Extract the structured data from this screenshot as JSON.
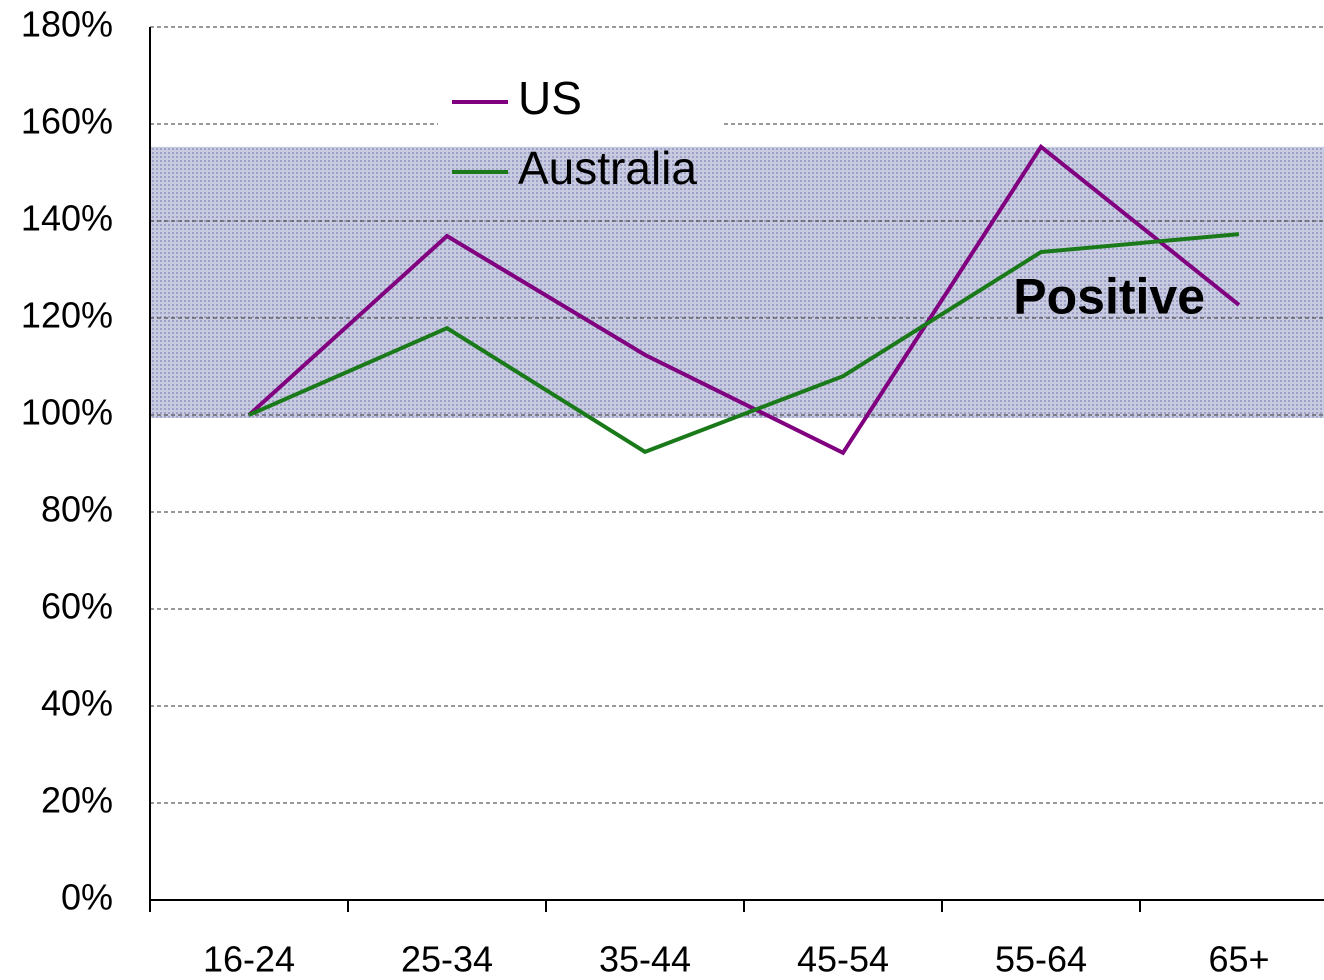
{
  "chart_data": {
    "type": "line",
    "categories": [
      "16-24",
      "25-34",
      "35-44",
      "45-54",
      "55-64",
      "65+"
    ],
    "series": [
      {
        "name": "US",
        "color": "#800080",
        "values": [
          100,
          136.9,
          112.4,
          92.2,
          155.3,
          122.7
        ]
      },
      {
        "name": "Australia",
        "color": "#1a7a1a",
        "values": [
          100,
          117.9,
          92.4,
          108,
          133.6,
          137.3
        ]
      }
    ],
    "ylim": [
      0,
      180
    ],
    "yticks": [
      {
        "value": 0,
        "label": "0%"
      },
      {
        "value": 20,
        "label": "20%"
      },
      {
        "value": 40,
        "label": "40%"
      },
      {
        "value": 60,
        "label": "60%"
      },
      {
        "value": 80,
        "label": "80%"
      },
      {
        "value": 100,
        "label": "100%"
      },
      {
        "value": 120,
        "label": "120%"
      },
      {
        "value": 140,
        "label": "140%"
      },
      {
        "value": 160,
        "label": "160%"
      },
      {
        "value": 180,
        "label": "180%"
      }
    ],
    "grid": true,
    "annotations": [
      {
        "text": "Positive",
        "from": 99.4,
        "to": 155.3
      }
    ]
  }
}
